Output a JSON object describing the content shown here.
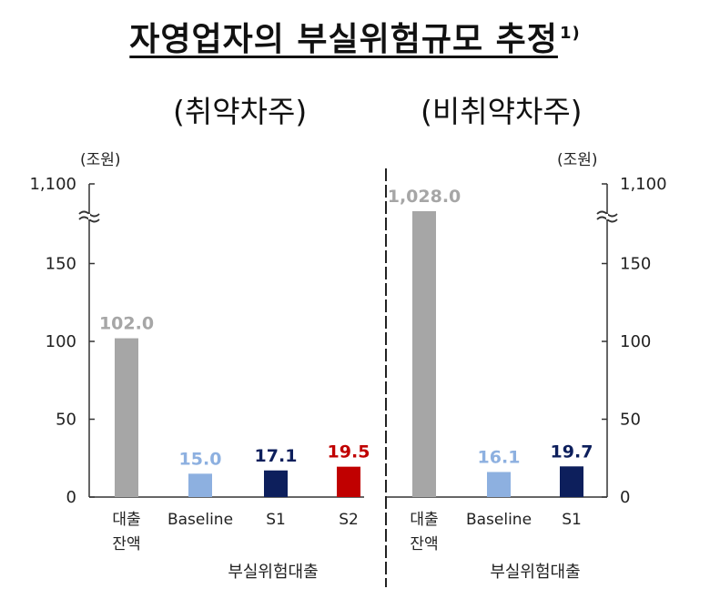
{
  "title": {
    "main": "자영업자의 부실위험규모 추정",
    "superscript": "1)"
  },
  "chart_data": [
    {
      "type": "bar",
      "title": "(취약차주)",
      "unit": "(조원)",
      "ylim": [
        0,
        1100
      ],
      "axis_break": true,
      "yticks": [
        "0",
        "50",
        "100",
        "150",
        "1,100"
      ],
      "categories": [
        {
          "label_lines": [
            "대출",
            "잔액"
          ],
          "value": 102.0,
          "value_label": "102.0",
          "color": "#a6a6a6"
        },
        {
          "label_lines": [
            "Baseline"
          ],
          "value": 15.0,
          "value_label": "15.0",
          "color": "#8db0e0"
        },
        {
          "label_lines": [
            "S1"
          ],
          "value": 17.1,
          "value_label": "17.1",
          "color": "#0d1f5c"
        },
        {
          "label_lines": [
            "S2"
          ],
          "value": 19.5,
          "value_label": "19.5",
          "color": "#c00000"
        }
      ],
      "group_label": "부실위험대출"
    },
    {
      "type": "bar",
      "title": "(비취약차주)",
      "unit": "(조원)",
      "ylim": [
        0,
        1100
      ],
      "axis_break": true,
      "yticks": [
        "0",
        "50",
        "100",
        "150",
        "1,100"
      ],
      "categories": [
        {
          "label_lines": [
            "대출",
            "잔액"
          ],
          "value": 1028.0,
          "value_label": "1,028.0",
          "color": "#a6a6a6"
        },
        {
          "label_lines": [
            "Baseline"
          ],
          "value": 16.1,
          "value_label": "16.1",
          "color": "#8db0e0"
        },
        {
          "label_lines": [
            "S1"
          ],
          "value": 19.7,
          "value_label": "19.7",
          "color": "#0d1f5c"
        }
      ],
      "group_label": "부실위험대출"
    }
  ]
}
